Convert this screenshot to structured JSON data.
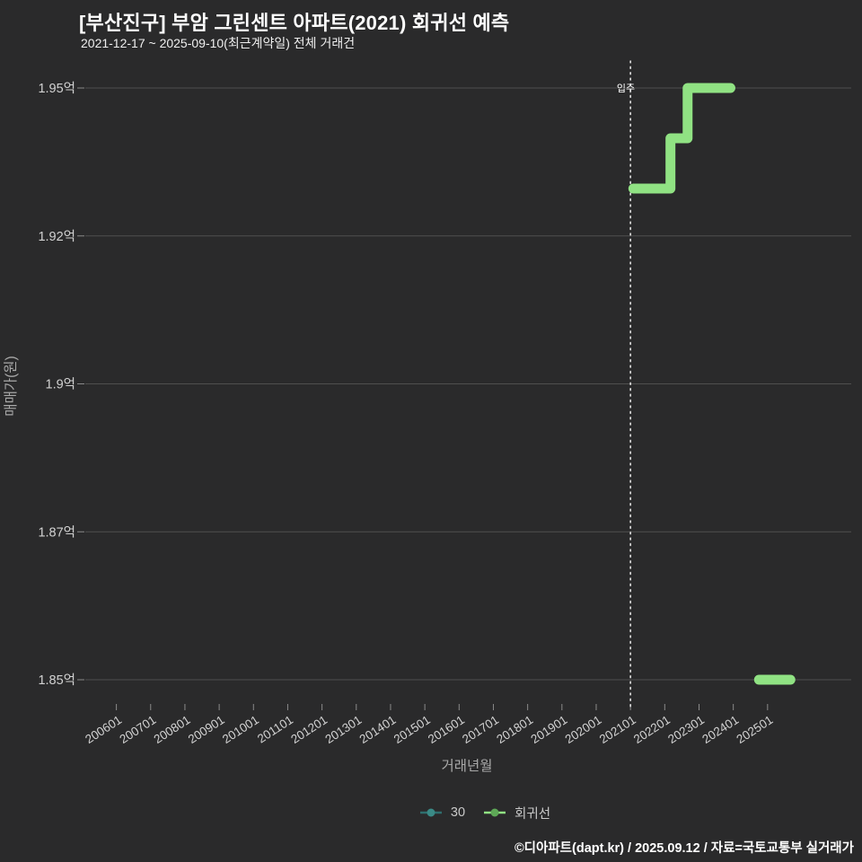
{
  "page": {
    "background": "#2a2a2b"
  },
  "header": {
    "title": "[부산진구] 부암 그린센트 아파트(2021) 회귀선 예측",
    "subtitle": "2021-12-17 ~ 2025-09-10(최근계약일) 전체 거래건"
  },
  "chart_data": {
    "type": "line",
    "title": "[부산진구] 부암 그린센트 아파트(2021) 회귀선 예측",
    "subtitle": "2021-12-17 ~ 2025-09-10(최근계약일) 전체 거래건",
    "xlabel": "거래년월",
    "ylabel": "매매가(원)",
    "grid": true,
    "legend_position": "bottom",
    "x_tick_labels": [
      "200601",
      "200701",
      "200801",
      "200901",
      "201001",
      "201101",
      "201201",
      "201301",
      "201401",
      "201501",
      "201601",
      "201701",
      "201801",
      "201901",
      "202001",
      "202101",
      "202201",
      "202301",
      "202401",
      "202501"
    ],
    "y_ticks": [
      {
        "label": "1.95억",
        "value": 1.95
      },
      {
        "label": "1.92억",
        "value": 1.925
      },
      {
        "label": "1.9억",
        "value": 1.9
      },
      {
        "label": "1.87억",
        "value": 1.875
      },
      {
        "label": "1.85억",
        "value": 1.85
      }
    ],
    "ylim": [
      1.84,
      1.955
    ],
    "series": [
      {
        "name": "30",
        "line_color": "#2e6f6e",
        "dot_color": "#3a8a86",
        "segments": []
      },
      {
        "name": "회귀선",
        "line_color": "#90e283",
        "dot_color": "#5ea857",
        "segments": [
          [
            [
              "202102",
              1.933
            ],
            [
              "202203",
              1.933
            ],
            [
              "202203",
              1.9415
            ],
            [
              "202209",
              1.9415
            ],
            [
              "202209",
              1.95
            ],
            [
              "202312",
              1.95
            ]
          ],
          [
            [
              "202410",
              1.85
            ],
            [
              "202509",
              1.85
            ]
          ]
        ]
      }
    ],
    "annotations": [
      {
        "label": "입주",
        "month": "202101"
      }
    ]
  },
  "legend": {
    "items": [
      {
        "label": "30",
        "line_color": "#2e6f6e",
        "dot_color": "#3a8a86"
      },
      {
        "label": "회귀선",
        "line_color": "#90e283",
        "dot_color": "#5ea857"
      }
    ]
  },
  "footer": {
    "text": "©디아파트(dapt.kr) / 2025.09.12 / 자료=국토교통부 실거래가"
  }
}
